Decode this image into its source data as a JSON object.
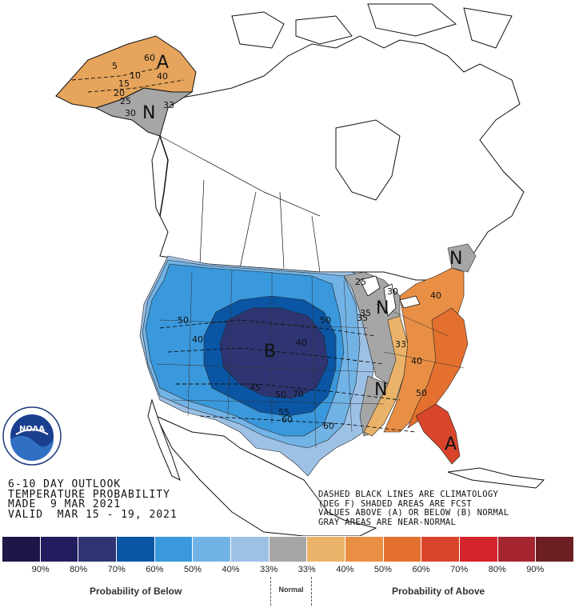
{
  "title_lines": [
    "6-10 DAY OUTLOOK",
    "TEMPERATURE PROBABILITY",
    "MADE  9 MAR 2021",
    "VALID  MAR 15 - 19, 2021"
  ],
  "note_lines": [
    "DASHED BLACK LINES ARE CLIMATOLOGY",
    "(DEG F) SHADED AREAS ARE FCST",
    "VALUES ABOVE (A) OR BELOW (B) NORMAL",
    "GRAY AREAS ARE NEAR-NORMAL"
  ],
  "logo": {
    "name": "NOAA",
    "ring_text": "NATIONAL OCEANIC AND ATMOSPHERIC ADMINISTRATION · U.S. DEPARTMENT OF COMMERCE"
  },
  "map": {
    "category_letters": {
      "alaska_above": "A",
      "alaska_normal": "N",
      "below": "B",
      "normal_north": "N",
      "normal_south": "N",
      "above": "A",
      "northeast_normal": "N"
    },
    "probability_labels": {
      "alaska_40": "40",
      "alaska_33": "33",
      "west_50": "50",
      "plains_50": "50",
      "lakes_25": "25",
      "lakes_35": "35",
      "ohio_33": "33",
      "east_40": "40",
      "se_40": "40",
      "se_50": "50",
      "south_60": "60",
      "south_70": "70",
      "ne_40": "40"
    },
    "climatology_labels": [
      "60",
      "5",
      "10",
      "15",
      "20",
      "25",
      "30",
      "40",
      "40",
      "45",
      "50",
      "55",
      "60",
      "30",
      "35"
    ],
    "colors": {
      "below_90": "#1c1748",
      "below_80": "#211d5e",
      "below_70": "#2e3572",
      "below_60": "#0a56a5",
      "below_50": "#3a98dc",
      "below_40": "#72b3e6",
      "below_33": "#9cc1e5",
      "normal": "#a6a6a6",
      "above_33": "#ebb36a",
      "above_40": "#e98f45",
      "above_50": "#e4702f",
      "above_60": "#d9452b",
      "above_70": "#d5232b",
      "above_80": "#a52630",
      "above_90": "#6c1e22"
    }
  },
  "legend": {
    "swatches": [
      "#1c1748",
      "#211d5e",
      "#2e3572",
      "#0a56a5",
      "#3a98dc",
      "#72b3e6",
      "#9cc1e5",
      "#a6a6a6",
      "#ebb36a",
      "#e98f45",
      "#e4702f",
      "#d9452b",
      "#d5232b",
      "#a52630",
      "#6c1e22"
    ],
    "labels": [
      "90%",
      "80%",
      "70%",
      "60%",
      "50%",
      "40%",
      "33%",
      "33%",
      "40%",
      "50%",
      "60%",
      "70%",
      "80%",
      "90%"
    ],
    "below_caption": "Probability of Below",
    "normal_caption": "Normal",
    "above_caption": "Probability of Above"
  }
}
